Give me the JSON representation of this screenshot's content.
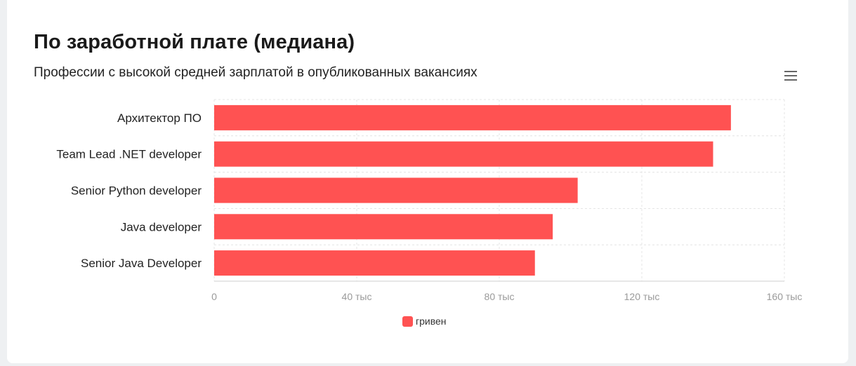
{
  "header": {
    "title": "По заработной плате (медиана)",
    "subtitle": "Профессии с высокой средней зарплатой в опубликованных вакансиях"
  },
  "menu": {
    "icon": "hamburger-menu-icon"
  },
  "colors": {
    "bar": "#ff5252",
    "grid": "#e4e4e4",
    "axis": "#cfcfcf"
  },
  "chart_data": {
    "type": "bar",
    "orientation": "horizontal",
    "categories": [
      "Архитектор ПО",
      "Team Lead .NET developer",
      "Senior Python developer",
      "Java developer",
      "Senior Java Developer"
    ],
    "series": [
      {
        "name": "гривен",
        "values": [
          145000,
          140000,
          102000,
          95000,
          90000
        ]
      }
    ],
    "xlim": [
      0,
      160000
    ],
    "x_ticks": [
      0,
      40000,
      80000,
      120000,
      160000
    ],
    "x_tick_labels": [
      "0",
      "40 тыс",
      "80 тыс",
      "120 тыс",
      "160 тыс"
    ],
    "grid": true,
    "legend_position": "bottom-center"
  }
}
